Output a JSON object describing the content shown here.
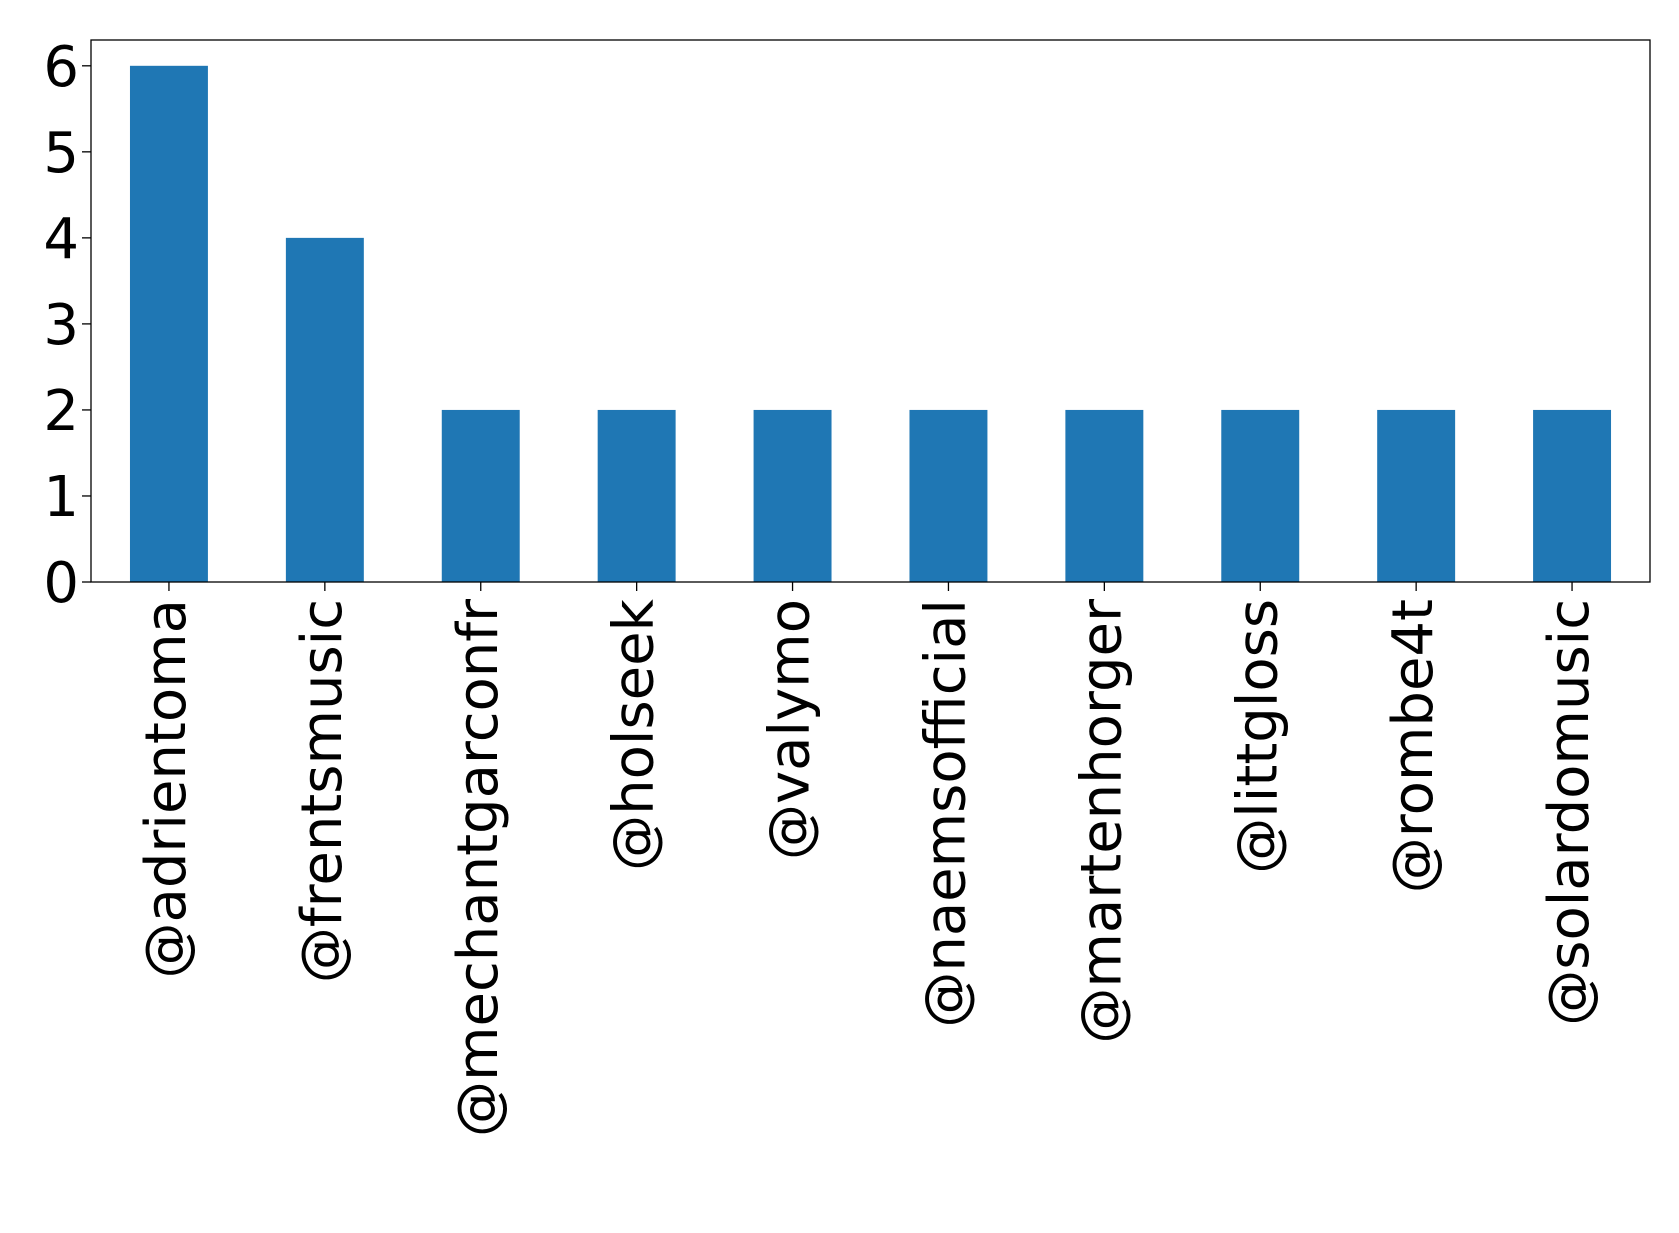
{
  "chart_data": {
    "type": "bar",
    "categories": [
      "@adrientoma",
      "@frentsmusic",
      "@mechantgarconfr",
      "@holseek",
      "@valymo",
      "@naemsofficial",
      "@martenhorger",
      "@littgloss",
      "@rombe4t",
      "@solardomusic"
    ],
    "values": [
      6,
      4,
      2,
      2,
      2,
      2,
      2,
      2,
      2,
      2
    ],
    "yticks": [
      "0",
      "1",
      "2",
      "3",
      "4",
      "5",
      "6"
    ],
    "ylim": [
      0,
      6.3
    ],
    "title": "",
    "xlabel": "",
    "ylabel": "",
    "grid": false,
    "legend": "none",
    "bar_color": "#1f77b4",
    "label_rotation": "vertical"
  }
}
